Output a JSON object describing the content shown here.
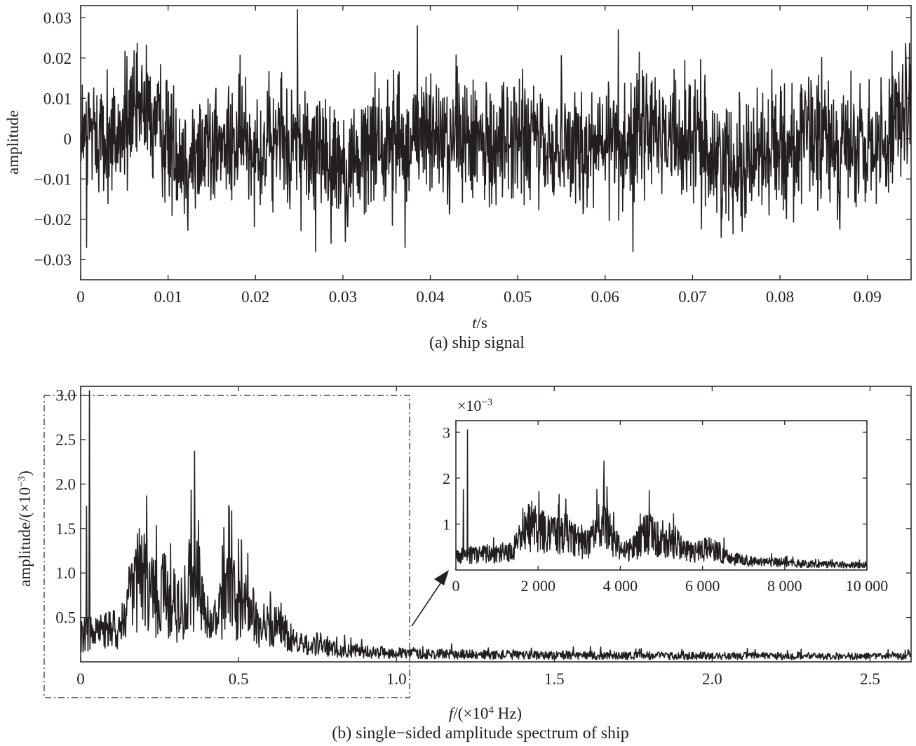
{
  "chart_data": [
    {
      "id": "a",
      "type": "line",
      "caption": "(a) ship signal",
      "xlabel_italic": "t",
      "xlabel_rest": "/s",
      "ylabel": "amplitude",
      "xlim": [
        0,
        0.095
      ],
      "ylim": [
        -0.035,
        0.033
      ],
      "xticks": [
        0,
        0.01,
        0.02,
        0.03,
        0.04,
        0.05,
        0.06,
        0.07,
        0.08,
        0.09
      ],
      "xtick_labels": [
        "0",
        "0.01",
        "0.02",
        "0.03",
        "0.04",
        "0.05",
        "0.06",
        "0.07",
        "0.08",
        "0.09"
      ],
      "yticks": [
        -0.03,
        -0.02,
        -0.01,
        0,
        0.01,
        0.02,
        0.03
      ],
      "ytick_labels": [
        "−0.03",
        "−0.02",
        "−0.01",
        "0",
        "0.01",
        "0.02",
        "0.03"
      ],
      "series": [
        {
          "color": "#231f20",
          "samples": 2100,
          "min": -0.028,
          "max": 0.032,
          "peaks": [
            {
              "x": 0.0248,
              "y": 0.032
            },
            {
              "x": 0.0385,
              "y": 0.028
            },
            {
              "x": 0.0615,
              "y": 0.027
            },
            {
              "x": 0.0269,
              "y": -0.028
            },
            {
              "x": 0.0632,
              "y": -0.028
            },
            {
              "x": 0.0007,
              "y": -0.027
            },
            {
              "x": 0.0371,
              "y": -0.027
            }
          ]
        }
      ]
    },
    {
      "id": "b",
      "type": "line",
      "caption": "(b) single−sided amplitude spectrum of ship",
      "xlabel_italic": "f",
      "xlabel_rest_1": "/(×10",
      "xlabel_sup": "4",
      "xlabel_rest_2": " Hz)",
      "ylabel_main": "amplitude/(×10",
      "ylabel_sup": "−3",
      "ylabel_end": ")",
      "xlim": [
        0,
        2.63
      ],
      "ylim": [
        0,
        3.1
      ],
      "xticks": [
        0,
        0.5,
        1.0,
        1.5,
        2.0,
        2.5
      ],
      "xtick_labels": [
        "0",
        "0.5",
        "1.0",
        "1.5",
        "2.0",
        "2.5"
      ],
      "yticks": [
        0.5,
        1.0,
        1.5,
        2.0,
        2.5,
        3.0
      ],
      "ytick_labels": [
        "0.5",
        "1.0",
        "1.5",
        "2.0",
        "2.5",
        "3.0"
      ],
      "peaks": [
        {
          "x": 0.028,
          "y": 3.05
        },
        {
          "x": 0.018,
          "y": 1.75
        },
        {
          "x": 0.185,
          "y": 1.5
        },
        {
          "x": 0.265,
          "y": 1.22
        },
        {
          "x": 0.36,
          "y": 2.37
        },
        {
          "x": 0.47,
          "y": 1.73
        },
        {
          "x": 0.53,
          "y": 1.22
        }
      ],
      "inset": {
        "type": "line",
        "scale_label": "×10",
        "scale_sup": "−3",
        "xlim": [
          0,
          10000
        ],
        "ylim": [
          0,
          3.25
        ],
        "xticks": [
          0,
          2000,
          4000,
          6000,
          8000,
          10000
        ],
        "xtick_labels": [
          "0",
          "2 000",
          "4 000",
          "6 000",
          "8 000",
          "10 000"
        ],
        "yticks": [
          1,
          2,
          3
        ],
        "ytick_labels": [
          "1",
          "2",
          "3"
        ]
      }
    }
  ]
}
